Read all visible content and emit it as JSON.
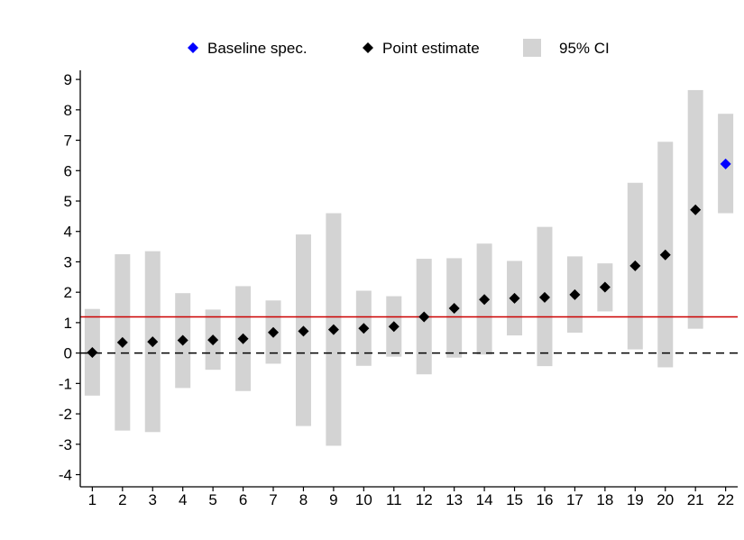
{
  "chart_data": {
    "type": "scatter",
    "title": "",
    "xlabel": "",
    "ylabel": "",
    "x_ticks": [
      "1",
      "2",
      "3",
      "4",
      "5",
      "6",
      "7",
      "8",
      "9",
      "10",
      "11",
      "12",
      "13",
      "14",
      "15",
      "16",
      "17",
      "18",
      "19",
      "20",
      "21",
      "22"
    ],
    "y_ticks": [
      "-4",
      "-3",
      "-2",
      "-1",
      "0",
      "1",
      "2",
      "3",
      "4",
      "5",
      "6",
      "7",
      "8",
      "9"
    ],
    "xlim": [
      0.6,
      22.4
    ],
    "ylim": [
      -4.4,
      9.3
    ],
    "grid": false,
    "legend_position": "top",
    "legend": [
      {
        "key": "baseline",
        "label": "Baseline spec.",
        "marker": "diamond",
        "color": "#0000ff"
      },
      {
        "key": "point",
        "label": "Point estimate",
        "marker": "diamond",
        "color": "#000000"
      },
      {
        "key": "ci",
        "label": "95% CI",
        "marker": "box",
        "color": "#d3d3d3"
      }
    ],
    "series": [
      {
        "name": "Point estimate",
        "x": [
          1,
          2,
          3,
          4,
          5,
          6,
          7,
          8,
          9,
          10,
          11,
          12,
          13,
          14,
          15,
          16,
          17,
          18,
          19,
          20,
          21
        ],
        "y": [
          0.02,
          0.35,
          0.37,
          0.42,
          0.43,
          0.47,
          0.68,
          0.72,
          0.77,
          0.81,
          0.87,
          1.19,
          1.47,
          1.76,
          1.8,
          1.83,
          1.92,
          2.17,
          2.87,
          3.23,
          4.71
        ],
        "ci_low": [
          -1.4,
          -2.55,
          -2.6,
          -1.15,
          -0.55,
          -1.25,
          -0.35,
          -2.4,
          -3.05,
          -0.42,
          -0.12,
          -0.7,
          -0.15,
          -0.05,
          0.58,
          -0.43,
          0.67,
          1.37,
          0.12,
          -0.47,
          0.8
        ],
        "ci_high": [
          1.45,
          3.25,
          3.35,
          1.97,
          1.43,
          2.2,
          1.73,
          3.9,
          4.6,
          2.05,
          1.87,
          3.1,
          3.12,
          3.6,
          3.03,
          4.15,
          3.18,
          2.95,
          5.6,
          6.95,
          8.65
        ]
      },
      {
        "name": "Baseline spec.",
        "x": [
          22
        ],
        "y": [
          6.22
        ],
        "ci_low": [
          4.6
        ],
        "ci_high": [
          7.87
        ]
      }
    ],
    "reference_lines": [
      {
        "style": "solid",
        "color": "#cc0000",
        "y": 1.19
      },
      {
        "style": "dashed",
        "color": "#000000",
        "y": 0
      }
    ]
  }
}
